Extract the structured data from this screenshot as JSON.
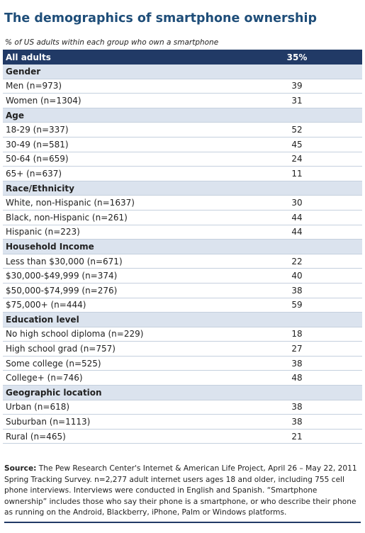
{
  "title": "The demographics of smartphone ownership",
  "subtitle": "% of US adults within each group who own a smartphone",
  "table": {
    "header": [
      "All adults",
      "35%"
    ],
    "sections": [
      {
        "name": "Gender",
        "rows": [
          [
            "Men (n=973)",
            39
          ],
          [
            "Women (n=1304)",
            31
          ]
        ]
      },
      {
        "name": "Age",
        "rows": [
          [
            "18-29 (n=337)",
            52
          ],
          [
            "30-49 (n=581)",
            45
          ],
          [
            "50-64 (n=659)",
            24
          ],
          [
            "65+ (n=637)",
            11
          ]
        ]
      },
      {
        "name": "Race/Ethnicity",
        "rows": [
          [
            "White, non-Hispanic (n=1637)",
            30
          ],
          [
            "Black, non-Hispanic (n=261)",
            44
          ],
          [
            "Hispanic (n=223)",
            44
          ]
        ]
      },
      {
        "name": "Household Income",
        "rows": [
          [
            "Less than $30,000  (n=671)",
            22
          ],
          [
            "$30,000-$49,999  (n=374)",
            40
          ],
          [
            "$50,000-$74,999  (n=276)",
            38
          ],
          [
            "$75,000+ (n=444)",
            59
          ]
        ]
      },
      {
        "name": "Education level",
        "rows": [
          [
            "No high school diploma (n=229)",
            18
          ],
          [
            "High school grad (n=757)",
            27
          ],
          [
            "Some college (n=525)",
            38
          ],
          [
            "College+ (n=746)",
            48
          ]
        ]
      },
      {
        "name": "Geographic location",
        "rows": [
          [
            "Urban (n=618)",
            38
          ],
          [
            "Suburban (n=1113)",
            38
          ],
          [
            "Rural (n=465)",
            21
          ]
        ]
      }
    ]
  },
  "source": {
    "label": "Source:",
    "text": "The Pew Research Center's Internet & American Life Project, April 26 – May 22, 2011 Spring Tracking Survey. n=2,277 adult internet users ages 18 and older, including 755 cell phone interviews. Interviews were conducted in English and Spanish. “Smartphone ownership” includes those who say their phone is a smartphone, or who describe their phone as running on the Android, Blackberry, iPhone, Palm or Windows platforms."
  }
}
